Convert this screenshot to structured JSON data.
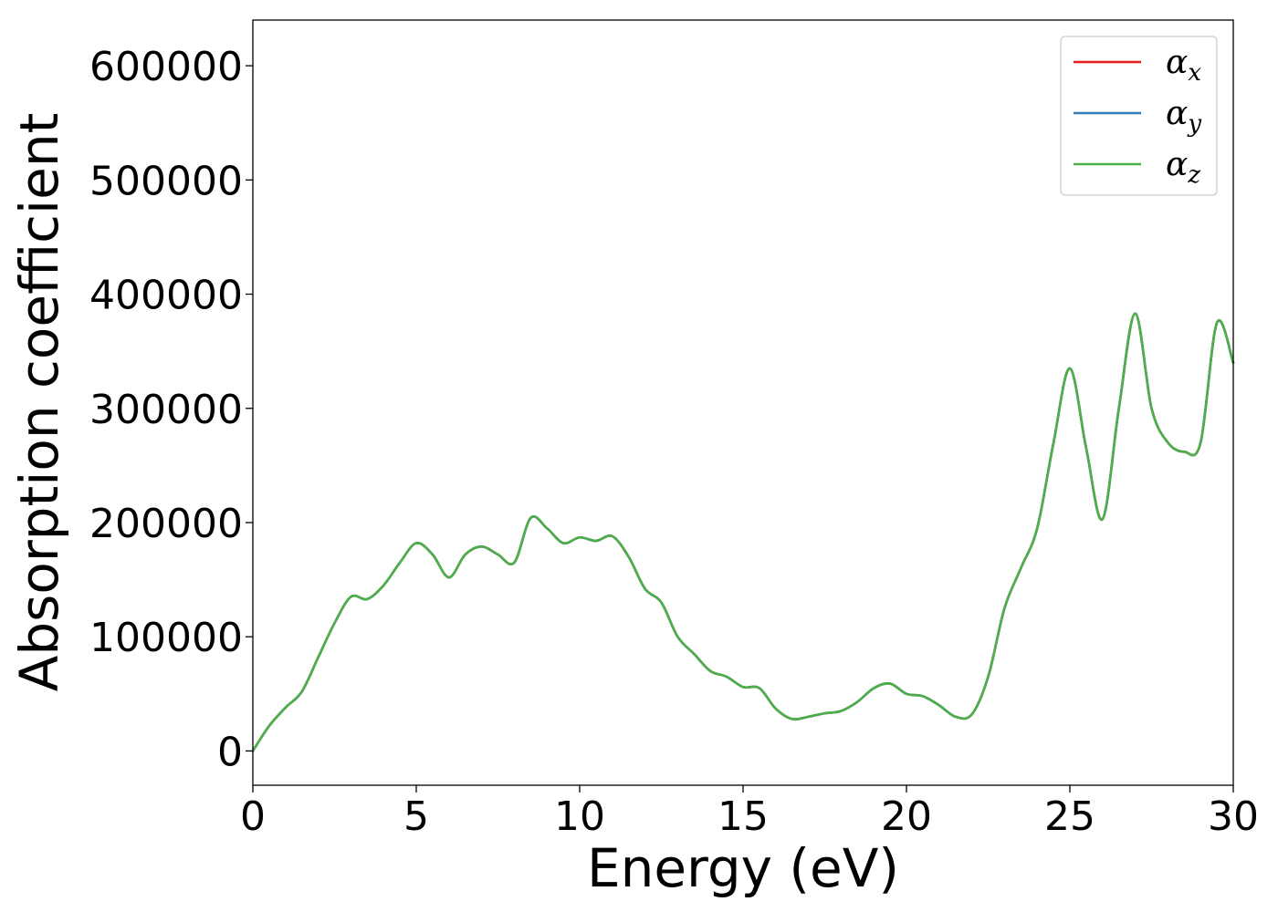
{
  "chart_data": {
    "type": "line",
    "title": "",
    "xlabel": "Energy (eV)",
    "ylabel": "Absorption coefficient",
    "xlim": [
      0,
      30
    ],
    "ylim": [
      -30000,
      640000
    ],
    "xticks": [
      0,
      5,
      10,
      15,
      20,
      25,
      30
    ],
    "yticks": [
      0,
      100000,
      200000,
      300000,
      400000,
      500000,
      600000
    ],
    "grid": false,
    "legend_position": "top-right",
    "colors": {
      "alpha_x": "#e41a1c",
      "alpha_y": "#377eb8",
      "alpha_z": "#4daf4a"
    },
    "legend": [
      {
        "key": "alpha_x",
        "symbol": "α",
        "subscript": "x"
      },
      {
        "key": "alpha_y",
        "symbol": "α",
        "subscript": "y"
      },
      {
        "key": "alpha_z",
        "symbol": "α",
        "subscript": "z"
      }
    ],
    "x": [
      0,
      0.5,
      1,
      1.5,
      2,
      2.5,
      3,
      3.5,
      4,
      4.5,
      5,
      5.5,
      6,
      6.5,
      7,
      7.5,
      8,
      8.5,
      9,
      9.5,
      10,
      10.5,
      11,
      11.5,
      12,
      12.5,
      13,
      13.5,
      14,
      14.5,
      15,
      15.5,
      16,
      16.5,
      17,
      17.5,
      18,
      18.5,
      19,
      19.5,
      20,
      20.5,
      21,
      21.5,
      22,
      22.5,
      23,
      23.5,
      24,
      24.5,
      25,
      25.5,
      26,
      26.5,
      27,
      27.5,
      28,
      28.5,
      29,
      29.5,
      30
    ],
    "series": [
      {
        "name": "αx",
        "key": "alpha_x",
        "values": [
          0,
          22000,
          38000,
          52000,
          82000,
          112000,
          135000,
          133000,
          145000,
          165000,
          182000,
          172000,
          152000,
          172000,
          179000,
          172000,
          165000,
          204000,
          195000,
          182000,
          187000,
          184000,
          188000,
          170000,
          142000,
          130000,
          100000,
          85000,
          70000,
          65000,
          56000,
          55000,
          37000,
          28000,
          30000,
          33000,
          35000,
          43000,
          55000,
          59000,
          50000,
          48000,
          40000,
          30000,
          32000,
          65000,
          125000,
          160000,
          195000,
          270000,
          335000,
          265000,
          203000,
          300000,
          383000,
          300000,
          270000,
          262000,
          270000,
          375000,
          340000
        ]
      },
      {
        "name": "αy",
        "key": "alpha_y",
        "values": [
          0,
          22000,
          38000,
          52000,
          82000,
          112000,
          135000,
          133000,
          145000,
          165000,
          182000,
          172000,
          152000,
          172000,
          179000,
          172000,
          165000,
          204000,
          195000,
          182000,
          187000,
          184000,
          188000,
          170000,
          142000,
          130000,
          100000,
          85000,
          70000,
          65000,
          56000,
          55000,
          37000,
          28000,
          30000,
          33000,
          35000,
          43000,
          55000,
          59000,
          50000,
          48000,
          40000,
          30000,
          32000,
          65000,
          125000,
          160000,
          195000,
          270000,
          335000,
          265000,
          203000,
          300000,
          383000,
          300000,
          270000,
          262000,
          270000,
          375000,
          340000
        ]
      },
      {
        "name": "αz",
        "key": "alpha_z",
        "values": [
          0,
          22000,
          38000,
          52000,
          82000,
          112000,
          135000,
          133000,
          145000,
          165000,
          182000,
          172000,
          152000,
          172000,
          179000,
          172000,
          165000,
          204000,
          195000,
          182000,
          187000,
          184000,
          188000,
          170000,
          142000,
          130000,
          100000,
          85000,
          70000,
          65000,
          56000,
          55000,
          37000,
          28000,
          30000,
          33000,
          35000,
          43000,
          55000,
          59000,
          50000,
          48000,
          40000,
          30000,
          32000,
          65000,
          125000,
          160000,
          195000,
          270000,
          335000,
          265000,
          203000,
          300000,
          383000,
          300000,
          270000,
          262000,
          270000,
          375000,
          340000
        ]
      }
    ]
  }
}
